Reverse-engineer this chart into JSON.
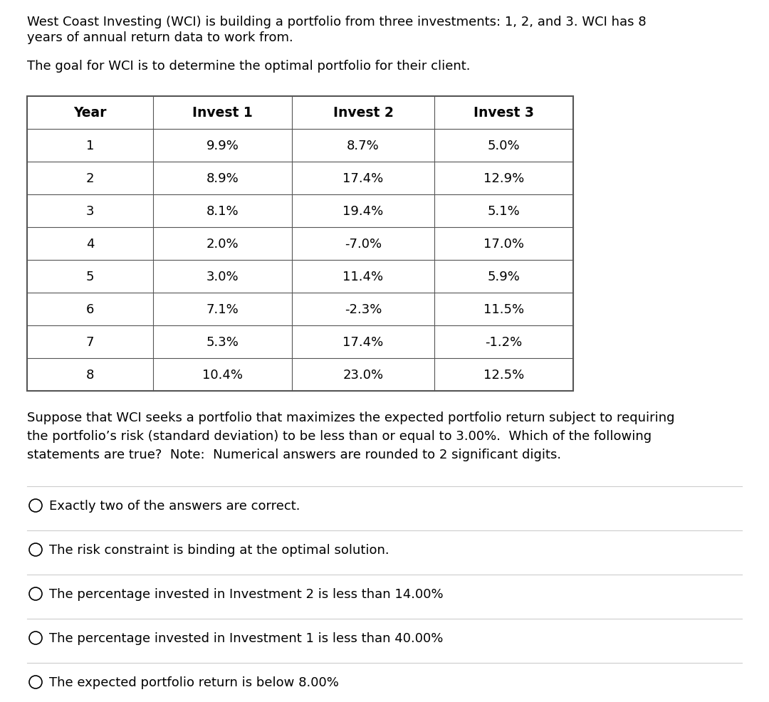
{
  "intro_text_line1": "West Coast Investing (WCI) is building a portfolio from three investments: 1, 2, and 3. WCI has 8",
  "intro_text_line2": "years of annual return data to work from.",
  "goal_text": "The goal for WCI is to determine the optimal portfolio for their client.",
  "table_headers": [
    "Year",
    "Invest 1",
    "Invest 2",
    "Invest 3"
  ],
  "table_data": [
    [
      "1",
      "9.9%",
      "8.7%",
      "5.0%"
    ],
    [
      "2",
      "8.9%",
      "17.4%",
      "12.9%"
    ],
    [
      "3",
      "8.1%",
      "19.4%",
      "5.1%"
    ],
    [
      "4",
      "2.0%",
      "-7.0%",
      "17.0%"
    ],
    [
      "5",
      "3.0%",
      "11.4%",
      "5.9%"
    ],
    [
      "6",
      "7.1%",
      "-2.3%",
      "11.5%"
    ],
    [
      "7",
      "5.3%",
      "17.4%",
      "-1.2%"
    ],
    [
      "8",
      "10.4%",
      "23.0%",
      "12.5%"
    ]
  ],
  "suppose_text_line1": "Suppose that WCI seeks a portfolio that maximizes the expected portfolio return subject to requiring",
  "suppose_text_line2": "the portfolio’s risk (standard deviation) to be less than or equal to 3.00%.  Which of the following",
  "suppose_text_line3": "statements are true?  Note:  Numerical answers are rounded to 2 significant digits.",
  "options": [
    "Exactly two of the answers are correct.",
    "The risk constraint is binding at the optimal solution.",
    "The percentage invested in Investment 2 is less than 14.00%",
    "The percentage invested in Investment 1 is less than 40.00%",
    "The expected portfolio return is below 8.00%"
  ],
  "bg_color": "#ffffff",
  "text_color": "#000000",
  "table_border_color": "#555555",
  "option_line_color": "#cccccc",
  "font_size_body": 13.0,
  "font_size_table_header": 13.5,
  "font_size_table_data": 13.0,
  "font_size_options": 13.0
}
